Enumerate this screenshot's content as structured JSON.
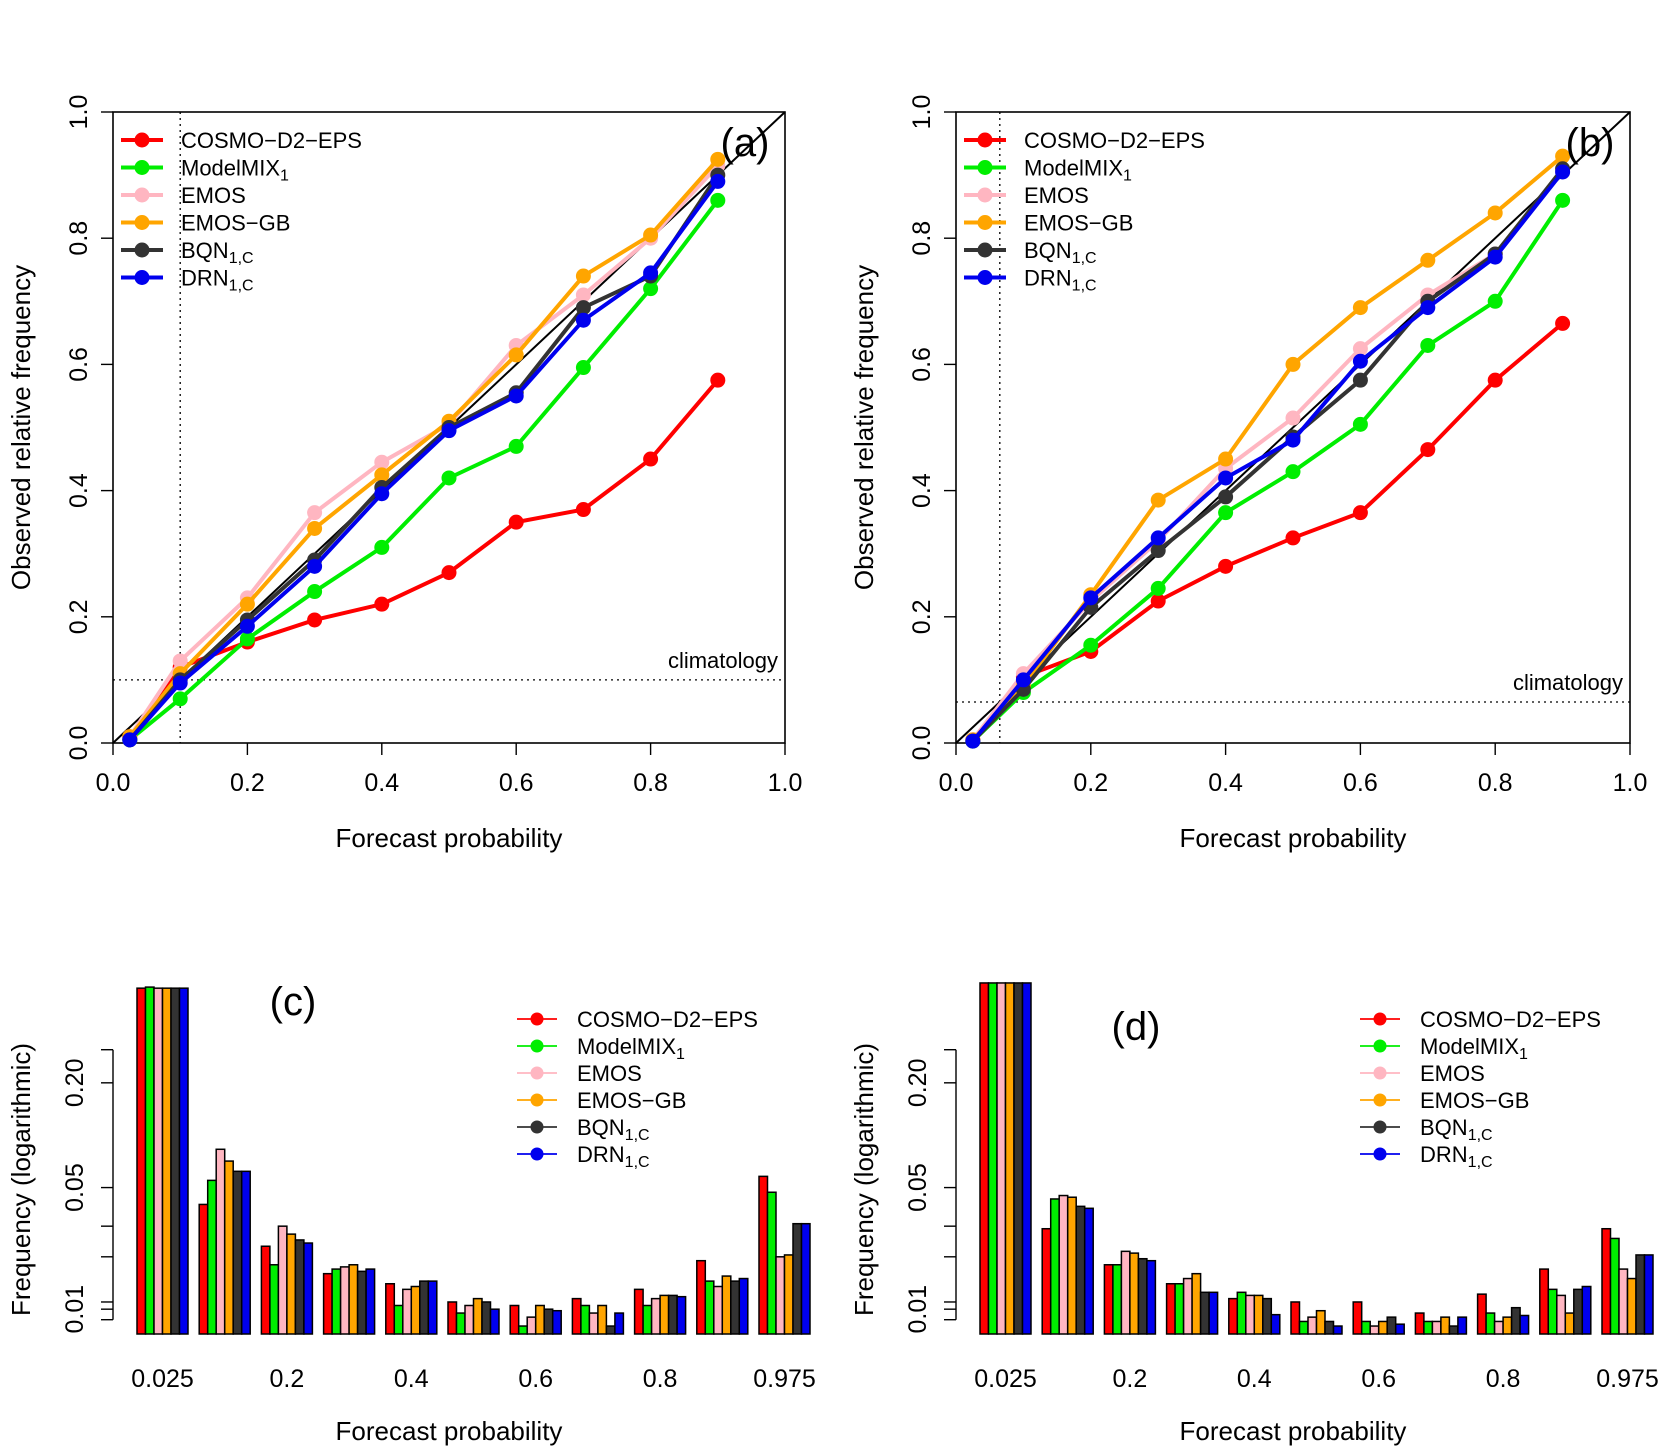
{
  "panels": [
    {
      "kind": "reliability",
      "tag": "(a)",
      "xlabel": "Forecast probability",
      "ylabel": "Observed relative frequency",
      "climatology_label": "climatology"
    },
    {
      "kind": "reliability",
      "tag": "(b)",
      "xlabel": "Forecast probability",
      "ylabel": "Observed relative frequency",
      "climatology_label": "climatology"
    },
    {
      "kind": "histogram",
      "tag": "(c)",
      "xlabel": "Forecast probability",
      "ylabel": "Frequency (logarithmic)"
    },
    {
      "kind": "histogram",
      "tag": "(d)",
      "xlabel": "Forecast probability",
      "ylabel": "Frequency (logarithmic)"
    }
  ],
  "legend": [
    {
      "label": "COSMO−D2−EPS",
      "sub": "",
      "color": "#ff0000"
    },
    {
      "label": "ModelMIX",
      "sub": "1",
      "color": "#00ee00"
    },
    {
      "label": "EMOS",
      "sub": "",
      "color": "#ffb6c1"
    },
    {
      "label": "EMOS−GB",
      "sub": "",
      "color": "#ffa500"
    },
    {
      "label": "BQN",
      "sub": "1,C",
      "color": "#333333"
    },
    {
      "label": "DRN",
      "sub": "1,C",
      "color": "#0000ee"
    }
  ],
  "chart_data": [
    {
      "type": "line",
      "tag": "(a)",
      "xlabel": "Forecast probability",
      "ylabel": "Observed relative frequency",
      "xlim": [
        0,
        1
      ],
      "ylim": [
        0,
        1
      ],
      "x_ticks": [
        "0.0",
        "0.2",
        "0.4",
        "0.6",
        "0.8",
        "1.0"
      ],
      "y_ticks": [
        "0.0",
        "0.2",
        "0.4",
        "0.6",
        "0.8",
        "1.0"
      ],
      "diagonal": true,
      "climatology": 0.1,
      "climatology_label": "climatology",
      "x": [
        0.025,
        0.1,
        0.2,
        0.3,
        0.4,
        0.5,
        0.6,
        0.7,
        0.8,
        0.9
      ],
      "series": [
        {
          "name": "COSMO−D2−EPS",
          "values": [
            0.01,
            0.12,
            0.16,
            0.195,
            0.22,
            0.27,
            0.35,
            0.37,
            0.45,
            0.575
          ]
        },
        {
          "name": "ModelMIX1",
          "values": [
            0.005,
            0.07,
            0.165,
            0.24,
            0.31,
            0.42,
            0.47,
            0.595,
            0.72,
            0.86
          ]
        },
        {
          "name": "EMOS",
          "values": [
            0.01,
            0.13,
            0.23,
            0.365,
            0.445,
            0.505,
            0.63,
            0.71,
            0.8,
            0.915
          ]
        },
        {
          "name": "EMOS−GB",
          "values": [
            0.01,
            0.11,
            0.22,
            0.34,
            0.425,
            0.51,
            0.615,
            0.74,
            0.805,
            0.925
          ]
        },
        {
          "name": "BQN1,C",
          "values": [
            0.005,
            0.1,
            0.195,
            0.29,
            0.405,
            0.5,
            0.555,
            0.69,
            0.74,
            0.9
          ]
        },
        {
          "name": "DRN1,C",
          "values": [
            0.005,
            0.095,
            0.185,
            0.28,
            0.395,
            0.495,
            0.55,
            0.67,
            0.745,
            0.89
          ]
        }
      ]
    },
    {
      "type": "line",
      "tag": "(b)",
      "xlabel": "Forecast probability",
      "ylabel": "Observed relative frequency",
      "xlim": [
        0,
        1
      ],
      "ylim": [
        0,
        1
      ],
      "x_ticks": [
        "0.0",
        "0.2",
        "0.4",
        "0.6",
        "0.8",
        "1.0"
      ],
      "y_ticks": [
        "0.0",
        "0.2",
        "0.4",
        "0.6",
        "0.8",
        "1.0"
      ],
      "diagonal": true,
      "climatology": 0.065,
      "climatology_label": "climatology",
      "x": [
        0.025,
        0.1,
        0.2,
        0.3,
        0.4,
        0.5,
        0.6,
        0.7,
        0.8,
        0.9
      ],
      "series": [
        {
          "name": "COSMO−D2−EPS",
          "values": [
            0.005,
            0.105,
            0.145,
            0.225,
            0.28,
            0.325,
            0.365,
            0.465,
            0.575,
            0.665
          ]
        },
        {
          "name": "ModelMIX1",
          "values": [
            0.003,
            0.08,
            0.155,
            0.245,
            0.365,
            0.43,
            0.505,
            0.63,
            0.7,
            0.86
          ]
        },
        {
          "name": "EMOS",
          "values": [
            0.005,
            0.11,
            0.225,
            0.32,
            0.435,
            0.515,
            0.625,
            0.71,
            0.775,
            0.905
          ]
        },
        {
          "name": "EMOS−GB",
          "values": [
            0.005,
            0.09,
            0.235,
            0.385,
            0.45,
            0.6,
            0.69,
            0.765,
            0.84,
            0.93
          ]
        },
        {
          "name": "BQN1,C",
          "values": [
            0.003,
            0.085,
            0.215,
            0.305,
            0.39,
            0.485,
            0.575,
            0.7,
            0.775,
            0.91
          ]
        },
        {
          "name": "DRN1,C",
          "values": [
            0.003,
            0.1,
            0.23,
            0.325,
            0.42,
            0.48,
            0.605,
            0.69,
            0.77,
            0.905
          ]
        }
      ]
    },
    {
      "type": "bar",
      "tag": "(c)",
      "xlabel": "Forecast probability",
      "ylabel": "Frequency (logarithmic)",
      "log_y": true,
      "y_ticks": [
        "0.01",
        "0.05",
        "0.20"
      ],
      "x_tick_labels": [
        "0.025",
        "0.2",
        "0.4",
        "0.6",
        "0.8",
        "0.975"
      ],
      "categories": [
        "0.025",
        "0.1",
        "0.2",
        "0.3",
        "0.4",
        "0.5",
        "0.6",
        "0.7",
        "0.8",
        "0.9",
        "0.975"
      ],
      "series": [
        {
          "name": "COSMO−D2−EPS",
          "values": [
            0.7,
            0.04,
            0.023,
            0.016,
            0.014,
            0.011,
            0.0105,
            0.0115,
            0.013,
            0.019,
            0.058
          ]
        },
        {
          "name": "ModelMIX1",
          "values": [
            0.71,
            0.055,
            0.018,
            0.017,
            0.0105,
            0.0095,
            0.008,
            0.0105,
            0.0105,
            0.0145,
            0.047
          ]
        },
        {
          "name": "EMOS",
          "values": [
            0.7,
            0.083,
            0.03,
            0.0175,
            0.013,
            0.0105,
            0.009,
            0.0095,
            0.0115,
            0.0135,
            0.02
          ]
        },
        {
          "name": "EMOS−GB",
          "values": [
            0.7,
            0.071,
            0.027,
            0.018,
            0.0135,
            0.0115,
            0.0105,
            0.0105,
            0.012,
            0.0155,
            0.0205
          ]
        },
        {
          "name": "BQN1,C",
          "values": [
            0.7,
            0.062,
            0.025,
            0.0165,
            0.0145,
            0.011,
            0.01,
            0.008,
            0.012,
            0.0145,
            0.031
          ]
        },
        {
          "name": "DRN1,C",
          "values": [
            0.7,
            0.062,
            0.024,
            0.017,
            0.0145,
            0.01,
            0.0098,
            0.0095,
            0.0118,
            0.015,
            0.031
          ]
        }
      ]
    },
    {
      "type": "bar",
      "tag": "(d)",
      "xlabel": "Forecast probability",
      "ylabel": "Frequency (logarithmic)",
      "log_y": true,
      "y_ticks": [
        "0.01",
        "0.05",
        "0.20"
      ],
      "x_tick_labels": [
        "0.025",
        "0.2",
        "0.4",
        "0.6",
        "0.8",
        "0.975"
      ],
      "categories": [
        "0.025",
        "0.1",
        "0.2",
        "0.3",
        "0.4",
        "0.5",
        "0.6",
        "0.7",
        "0.8",
        "0.9",
        "0.975"
      ],
      "series": [
        {
          "name": "COSMO−D2−EPS",
          "values": [
            0.75,
            0.029,
            0.018,
            0.014,
            0.0115,
            0.011,
            0.011,
            0.0095,
            0.0122,
            0.017,
            0.029
          ]
        },
        {
          "name": "ModelMIX1",
          "values": [
            0.75,
            0.043,
            0.018,
            0.014,
            0.0125,
            0.0085,
            0.0085,
            0.0085,
            0.0095,
            0.013,
            0.0255
          ]
        },
        {
          "name": "EMOS",
          "values": [
            0.75,
            0.045,
            0.0215,
            0.015,
            0.012,
            0.009,
            0.008,
            0.0085,
            0.0085,
            0.012,
            0.017
          ]
        },
        {
          "name": "EMOS−GB",
          "values": [
            0.75,
            0.044,
            0.021,
            0.016,
            0.012,
            0.0098,
            0.0085,
            0.009,
            0.009,
            0.0095,
            0.015
          ]
        },
        {
          "name": "BQN1,C",
          "values": [
            0.75,
            0.039,
            0.0195,
            0.0125,
            0.0115,
            0.0085,
            0.009,
            0.008,
            0.0102,
            0.013,
            0.0205
          ]
        },
        {
          "name": "DRN1,C",
          "values": [
            0.75,
            0.038,
            0.019,
            0.0125,
            0.0093,
            0.008,
            0.0082,
            0.009,
            0.0092,
            0.0135,
            0.0205
          ]
        }
      ]
    }
  ]
}
